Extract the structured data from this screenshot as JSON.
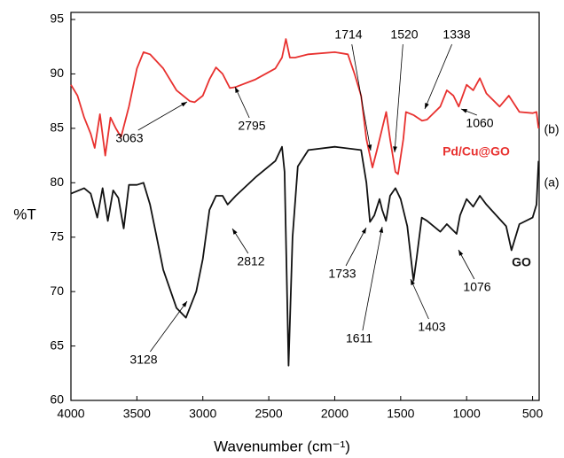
{
  "chart_data": {
    "type": "line",
    "xlabel": "Wavenumber (cm⁻¹)",
    "ylabel": "%T",
    "xlim": [
      4000,
      450
    ],
    "ylim": [
      60,
      95
    ],
    "xticks": [
      4000,
      3500,
      3000,
      2500,
      2000,
      1500,
      1000,
      500
    ],
    "yticks": [
      60,
      65,
      70,
      75,
      80,
      85,
      90,
      95
    ],
    "grid": false,
    "series": [
      {
        "name": "Pd/Cu@GO",
        "tag": "(b)",
        "color": "#e8312f",
        "x": [
          4000,
          3950,
          3900,
          3850,
          3820,
          3780,
          3740,
          3700,
          3660,
          3620,
          3560,
          3500,
          3450,
          3400,
          3300,
          3200,
          3100,
          3063,
          3000,
          2950,
          2900,
          2850,
          2795,
          2750,
          2600,
          2450,
          2400,
          2370,
          2340,
          2300,
          2200,
          2000,
          1900,
          1850,
          1800,
          1760,
          1714,
          1680,
          1640,
          1610,
          1580,
          1540,
          1520,
          1480,
          1460,
          1400,
          1338,
          1300,
          1200,
          1150,
          1100,
          1060,
          1000,
          950,
          900,
          850,
          750,
          680,
          600,
          500,
          470,
          455
        ],
        "values": [
          89,
          88,
          86,
          84.5,
          83.2,
          86.3,
          82.5,
          86,
          85,
          84.2,
          87,
          90.5,
          92,
          91.8,
          90.5,
          88.5,
          87.5,
          87.4,
          88,
          89.5,
          90.6,
          90,
          88.7,
          88.8,
          89.5,
          90.5,
          91.5,
          93.2,
          91.5,
          91.5,
          91.8,
          92,
          91.8,
          90,
          88,
          84,
          81.4,
          83,
          85,
          86.5,
          84,
          81,
          80.8,
          84,
          86.5,
          86.2,
          85.7,
          85.8,
          87,
          88.5,
          88,
          87,
          89,
          88.5,
          89.6,
          88.2,
          87,
          88,
          86.5,
          86.4,
          86.5,
          85
        ]
      },
      {
        "name": "GO",
        "tag": "(a)",
        "color": "#111111",
        "x": [
          4000,
          3900,
          3850,
          3800,
          3760,
          3720,
          3680,
          3640,
          3600,
          3560,
          3500,
          3450,
          3400,
          3350,
          3300,
          3200,
          3128,
          3050,
          3000,
          2950,
          2900,
          2850,
          2812,
          2750,
          2600,
          2450,
          2400,
          2380,
          2350,
          2320,
          2280,
          2200,
          2000,
          1800,
          1760,
          1733,
          1700,
          1660,
          1640,
          1611,
          1580,
          1540,
          1500,
          1450,
          1403,
          1380,
          1340,
          1300,
          1200,
          1150,
          1076,
          1050,
          1000,
          950,
          900,
          850,
          700,
          660,
          600,
          500,
          470,
          455
        ],
        "values": [
          79,
          79.5,
          79,
          76.8,
          79.5,
          76.5,
          79.3,
          78.6,
          75.8,
          79.8,
          79.8,
          80,
          78,
          75,
          72,
          68.5,
          67.6,
          70,
          73,
          77.5,
          78.8,
          78.8,
          78,
          78.8,
          80.5,
          82,
          83.3,
          81,
          63.2,
          75,
          81.5,
          83,
          83.3,
          83,
          80,
          76.4,
          77,
          78.5,
          77.5,
          76.5,
          78.8,
          79.5,
          78.5,
          76,
          71,
          73,
          76.8,
          76.5,
          75.5,
          76.2,
          75.3,
          77,
          78.5,
          77.8,
          78.8,
          78,
          76,
          73.8,
          76.2,
          76.8,
          78,
          82
        ]
      }
    ],
    "annotations": [
      "3063",
      "2795",
      "1714",
      "1520",
      "1338",
      "1060",
      "3128",
      "2812",
      "1733",
      "1611",
      "1403",
      "1076"
    ]
  }
}
